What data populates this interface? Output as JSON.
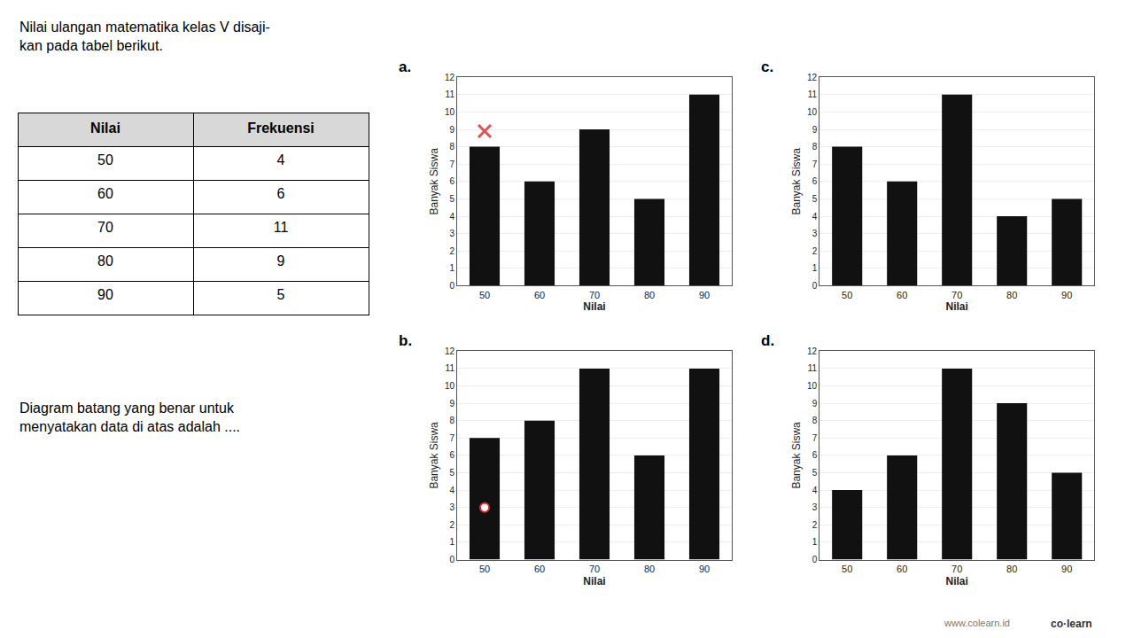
{
  "chart_data": [
    {
      "type": "table",
      "title": "Nilai ulangan matematika kelas V disaji-\nkan pada tabel berikut.",
      "columns": [
        "Nilai",
        "Frekuensi"
      ],
      "rows": [
        [
          50,
          4
        ],
        [
          60,
          6
        ],
        [
          70,
          11
        ],
        [
          80,
          9
        ],
        [
          90,
          5
        ]
      ],
      "annotations": [
        "Diagram batang yang benar untuk\nmenyatakan data di atas adalah ...."
      ]
    },
    {
      "type": "bar",
      "title": "a.",
      "categories": [
        50,
        60,
        70,
        80,
        90
      ],
      "values": [
        8,
        6,
        9,
        5,
        11
      ],
      "color": "#111111",
      "xlabel": "Nilai",
      "ylabel": "Banyak Siswa",
      "ylim": [
        0,
        12
      ],
      "yticks": [
        0,
        1,
        2,
        3,
        4,
        5,
        6,
        7,
        8,
        9,
        10,
        11,
        12
      ],
      "grid": true,
      "marks": [
        {
          "marker": "x",
          "category": 50,
          "value": 8.9,
          "color": "#e05050"
        }
      ]
    },
    {
      "type": "bar",
      "title": "b.",
      "categories": [
        50,
        60,
        70,
        80,
        90
      ],
      "values": [
        7,
        8,
        11,
        6,
        11
      ],
      "color": "#111111",
      "xlabel": "Nilai",
      "ylabel": "Banyak Siswa",
      "ylim": [
        0,
        12
      ],
      "yticks": [
        0,
        1,
        2,
        3,
        4,
        5,
        6,
        7,
        8,
        9,
        10,
        11,
        12
      ],
      "grid": true,
      "marks": [
        {
          "marker": "circle",
          "category": 50,
          "value": 3.0,
          "color": "#e03030"
        }
      ]
    },
    {
      "type": "bar",
      "title": "c.",
      "categories": [
        50,
        60,
        70,
        80,
        90
      ],
      "values": [
        8,
        6,
        11,
        4,
        5
      ],
      "color": "#111111",
      "xlabel": "Nilai",
      "ylabel": "Banyak Siswa",
      "ylim": [
        0,
        12
      ],
      "yticks": [
        0,
        1,
        2,
        3,
        4,
        5,
        6,
        7,
        8,
        9,
        10,
        11,
        12
      ],
      "grid": true
    },
    {
      "type": "bar",
      "title": "d.",
      "categories": [
        50,
        60,
        70,
        80,
        90
      ],
      "values": [
        4,
        6,
        11,
        9,
        5
      ],
      "color": "#111111",
      "xlabel": "Nilai",
      "ylabel": "Banyak Siswa",
      "ylim": [
        0,
        12
      ],
      "yticks": [
        0,
        1,
        2,
        3,
        4,
        5,
        6,
        7,
        8,
        9,
        10,
        11,
        12
      ],
      "grid": true
    }
  ],
  "annotations": [
    "www.colearn.id",
    "co·learn"
  ]
}
